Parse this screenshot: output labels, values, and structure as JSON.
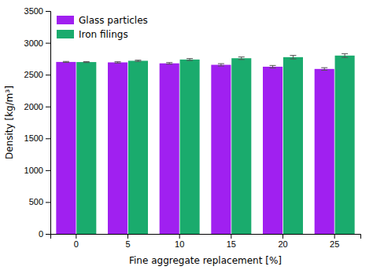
{
  "chart_data": {
    "type": "bar",
    "xlabel": "Fine aggregate replacement [%]",
    "ylabel": "Density [kg/m³]",
    "categories": [
      "0",
      "5",
      "10",
      "15",
      "20",
      "25"
    ],
    "series": [
      {
        "name": "Glass particles",
        "color": "#a020f0",
        "values": [
          2700,
          2693,
          2678,
          2655,
          2625,
          2590
        ],
        "errors": [
          8,
          10,
          12,
          18,
          20,
          20
        ]
      },
      {
        "name": "Iron filings",
        "color": "#1aab6d",
        "values": [
          2698,
          2718,
          2738,
          2758,
          2775,
          2800
        ],
        "errors": [
          8,
          10,
          15,
          20,
          28,
          30
        ]
      }
    ],
    "ylim": [
      0,
      3500
    ],
    "yticks": [
      0,
      500,
      1000,
      1500,
      2000,
      2500,
      3000,
      3500
    ],
    "grid": false,
    "legend": "upper-left"
  }
}
